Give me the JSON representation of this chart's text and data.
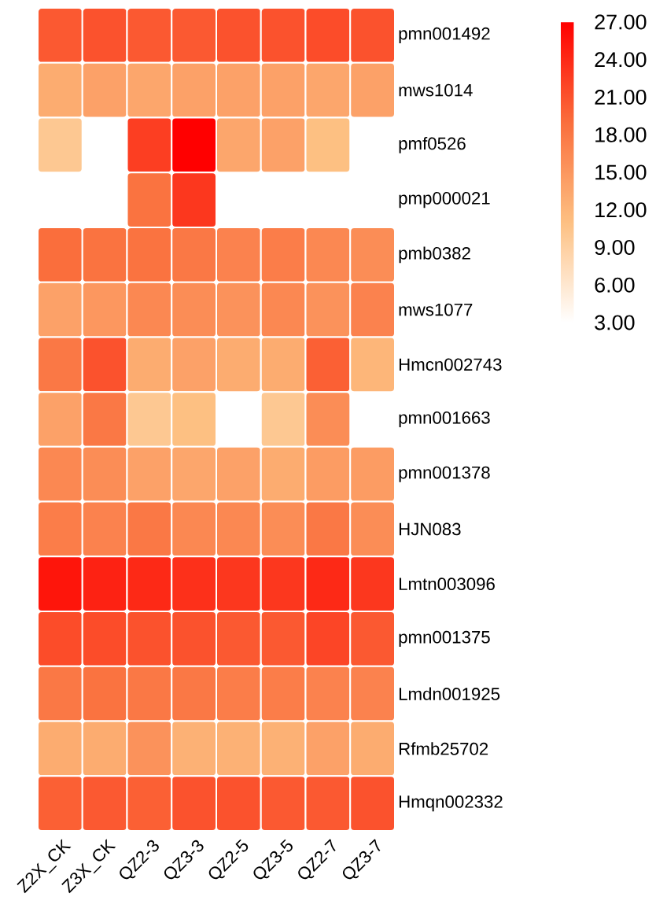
{
  "chart_data": {
    "type": "heatmap",
    "categories": [
      "Z2X_CK",
      "Z3X_CK",
      "QZ2-3",
      "QZ3-3",
      "QZ2-5",
      "QZ3-5",
      "QZ2-7",
      "QZ3-7"
    ],
    "y_categories": [
      "pmn001492",
      "mws1014",
      "pmf0526",
      "pmp000021",
      "pmb0382",
      "mws1077",
      "Hmcn002743",
      "pmn001663",
      "pmn001378",
      "HJN083",
      "Lmtn003096",
      "pmn001375",
      "Lmdn001925",
      "Rfmb25702",
      "Hmqn002332"
    ],
    "cells": [
      [
        20.5,
        21,
        20.5,
        20.5,
        21,
        21,
        21.5,
        21
      ],
      [
        13,
        14,
        13.5,
        14,
        14,
        14,
        13.5,
        14
      ],
      [
        10,
        null,
        22.5,
        27,
        13.5,
        14,
        11,
        null
      ],
      [
        null,
        null,
        18.5,
        23,
        null,
        null,
        null,
        null
      ],
      [
        19,
        18.5,
        18.5,
        18,
        17,
        17.5,
        16.5,
        16
      ],
      [
        14,
        15,
        16.5,
        16,
        15.5,
        16.5,
        15.5,
        17
      ],
      [
        18,
        21,
        13,
        14,
        13,
        13,
        20,
        12
      ],
      [
        14,
        18,
        10,
        11,
        null,
        10,
        16,
        null
      ],
      [
        16.5,
        16,
        14,
        13.5,
        14,
        13,
        14.5,
        14.5
      ],
      [
        17.5,
        17,
        18,
        16.5,
        16.5,
        16,
        18,
        16
      ],
      [
        25.5,
        24.5,
        24,
        23.5,
        23,
        23,
        24,
        23
      ],
      [
        21.5,
        21.5,
        21,
        21,
        20.5,
        20.5,
        22,
        20.5
      ],
      [
        18,
        18.5,
        18,
        18,
        17.5,
        17.5,
        17,
        17
      ],
      [
        13,
        13,
        15.5,
        12.5,
        12.5,
        12.5,
        14,
        13
      ],
      [
        20,
        20.5,
        20,
        21,
        21,
        20.5,
        20.5,
        21
      ]
    ],
    "clim": [
      3,
      27
    ],
    "cticks": [
      {
        "value": 3,
        "label": "3.00"
      },
      {
        "value": 6,
        "label": "6.00"
      },
      {
        "value": 9,
        "label": "9.00"
      },
      {
        "value": 12,
        "label": "12.00"
      },
      {
        "value": 15,
        "label": "15.00"
      },
      {
        "value": 18,
        "label": "18.00"
      },
      {
        "value": 21,
        "label": "21.00"
      },
      {
        "value": 24,
        "label": "24.00"
      },
      {
        "value": 27,
        "label": "27.00"
      }
    ]
  }
}
